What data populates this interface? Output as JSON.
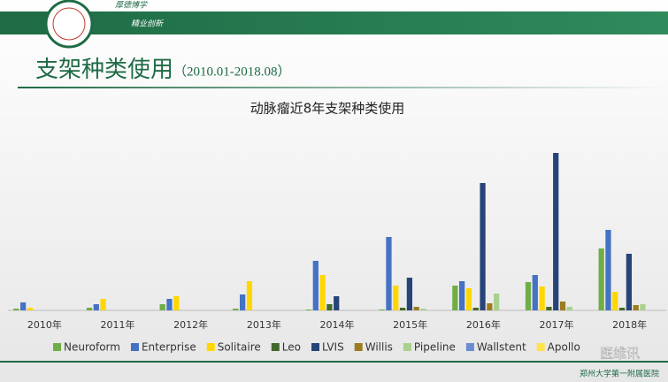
{
  "slide": {
    "motto_1": "厚德博学",
    "motto_2": "精业创新",
    "title": "支架种类使用",
    "subtitle": "（2010.01-2018.08）",
    "footer": "郑州大学第一附属医院",
    "watermark": "医维讯"
  },
  "chart_data": {
    "type": "bar",
    "title": "动脉瘤近8年支架种类使用",
    "categories": [
      "2010年",
      "2011年",
      "2012年",
      "2013年",
      "2014年",
      "2015年",
      "2016年",
      "2017年",
      "2018年"
    ],
    "ylim": [
      0,
      180
    ],
    "legend": "bottom",
    "series": [
      {
        "name": "Neuroform",
        "color": "#70ad47",
        "values": [
          2,
          3,
          7,
          2,
          1,
          1,
          28,
          32,
          70
        ]
      },
      {
        "name": "Enterprise",
        "color": "#4472c4",
        "values": [
          9,
          7,
          13,
          18,
          56,
          83,
          33,
          40,
          91
        ]
      },
      {
        "name": "Solitaire",
        "color": "#ffd700",
        "values": [
          3,
          13,
          16,
          33,
          40,
          28,
          25,
          27,
          21
        ]
      },
      {
        "name": "Leo",
        "color": "#43682b",
        "values": [
          0,
          0,
          0,
          0,
          7,
          3,
          3,
          4,
          3
        ]
      },
      {
        "name": "LVIS",
        "color": "#264478",
        "values": [
          0,
          0,
          0,
          0,
          16,
          37,
          144,
          178,
          64
        ]
      },
      {
        "name": "Willis",
        "color": "#9e7c20",
        "values": [
          0,
          0,
          0,
          0,
          0,
          4,
          8,
          10,
          6
        ]
      },
      {
        "name": "Pipeline",
        "color": "#a9d18e",
        "values": [
          0,
          0,
          0,
          0,
          0,
          2,
          19,
          4,
          7
        ]
      },
      {
        "name": "Wallstent",
        "color": "#698ed0",
        "values": [
          0,
          0,
          0,
          0,
          0,
          0,
          0,
          0,
          0
        ]
      },
      {
        "name": "Apollo",
        "color": "#ffe34d",
        "values": [
          0,
          0,
          0,
          0,
          0,
          0,
          0,
          0,
          0
        ]
      }
    ]
  }
}
